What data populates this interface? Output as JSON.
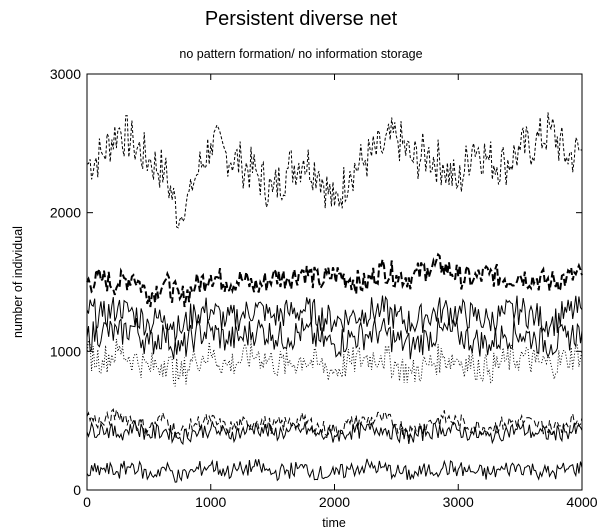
{
  "chart_data": {
    "type": "line",
    "title": "Persistent diverse net",
    "subtitle": "no pattern formation/ no information storage",
    "xlabel": "time",
    "ylabel": "number of individual",
    "xlim": [
      0,
      4000
    ],
    "ylim": [
      0,
      3000
    ],
    "xticks": [
      "0",
      "1000",
      "2000",
      "3000",
      "4000"
    ],
    "yticks": [
      "0",
      "1000",
      "2000",
      "3000"
    ],
    "grid": false,
    "legend": "none",
    "x": [
      0,
      125,
      250,
      375,
      500,
      625,
      750,
      875,
      1000,
      1125,
      1250,
      1375,
      1500,
      1625,
      1750,
      1875,
      2000,
      2125,
      2250,
      2375,
      2500,
      2625,
      2750,
      2875,
      3000,
      3125,
      3250,
      3375,
      3500,
      3625,
      3750,
      3875,
      4000
    ],
    "series": [
      {
        "style": "short-dash",
        "values": [
          2350,
          2420,
          2600,
          2500,
          2380,
          2300,
          1950,
          2250,
          2500,
          2430,
          2350,
          2280,
          2150,
          2320,
          2380,
          2300,
          2050,
          2300,
          2380,
          2450,
          2550,
          2380,
          2420,
          2350,
          2200,
          2500,
          2380,
          2350,
          2450,
          2500,
          2600,
          2400,
          2450
        ]
      },
      {
        "style": "long-dash-bold",
        "values": [
          1500,
          1520,
          1480,
          1550,
          1400,
          1500,
          1380,
          1470,
          1550,
          1500,
          1520,
          1460,
          1540,
          1530,
          1580,
          1500,
          1560,
          1520,
          1480,
          1600,
          1550,
          1530,
          1600,
          1620,
          1540,
          1520,
          1560,
          1520,
          1550,
          1520,
          1500,
          1530,
          1550
        ]
      },
      {
        "style": "solid",
        "values": [
          1300,
          1250,
          1320,
          1280,
          1200,
          1260,
          1150,
          1280,
          1300,
          1220,
          1260,
          1320,
          1250,
          1280,
          1300,
          1260,
          1220,
          1250,
          1280,
          1300,
          1250,
          1200,
          1260,
          1300,
          1280,
          1250,
          1220,
          1270,
          1300,
          1250,
          1200,
          1280,
          1300
        ]
      },
      {
        "style": "solid",
        "values": [
          1100,
          1150,
          1120,
          1180,
          1050,
          1130,
          1000,
          1120,
          1150,
          1080,
          1100,
          1160,
          1120,
          1100,
          1150,
          1080,
          1050,
          1100,
          1120,
          1150,
          1080,
          1030,
          1100,
          1150,
          1120,
          1080,
          1050,
          1120,
          1130,
          1090,
          1050,
          1100,
          1150
        ]
      },
      {
        "style": "dotted",
        "values": [
          980,
          940,
          1000,
          950,
          880,
          930,
          820,
          950,
          980,
          900,
          940,
          980,
          920,
          900,
          950,
          900,
          860,
          920,
          950,
          970,
          900,
          840,
          900,
          960,
          940,
          900,
          870,
          930,
          960,
          920,
          900,
          950,
          1000
        ]
      },
      {
        "style": "long-dash",
        "values": [
          530,
          480,
          550,
          500,
          450,
          520,
          400,
          480,
          500,
          440,
          470,
          500,
          460,
          480,
          500,
          450,
          430,
          480,
          500,
          520,
          470,
          430,
          480,
          520,
          490,
          460,
          450,
          480,
          500,
          470,
          450,
          480,
          520
        ]
      },
      {
        "style": "solid",
        "values": [
          420,
          450,
          400,
          460,
          400,
          430,
          380,
          420,
          440,
          400,
          420,
          450,
          410,
          420,
          440,
          400,
          390,
          420,
          430,
          450,
          410,
          380,
          420,
          440,
          430,
          400,
          390,
          420,
          440,
          410,
          400,
          420,
          430
        ]
      },
      {
        "style": "solid",
        "values": [
          120,
          150,
          130,
          180,
          100,
          160,
          90,
          140,
          180,
          130,
          150,
          170,
          120,
          140,
          160,
          120,
          110,
          150,
          170,
          160,
          130,
          110,
          140,
          160,
          150,
          130,
          120,
          150,
          170,
          140,
          120,
          150,
          160
        ]
      }
    ]
  }
}
